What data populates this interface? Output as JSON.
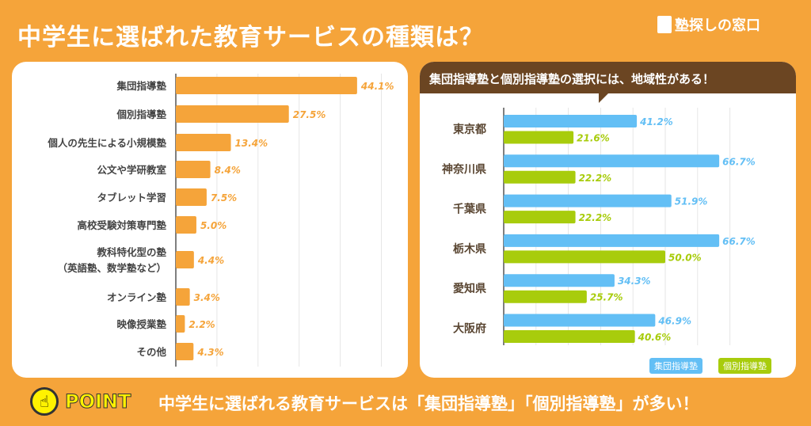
{
  "title": "中学生に選ばれた教育サービスの種類は？",
  "logo": "塾探しの窓口",
  "chart_data": [
    {
      "type": "bar",
      "orientation": "horizontal",
      "categories": [
        "集団指導塾",
        "個別指導塾",
        "個人の先生による小規模塾",
        "公文や学研教室",
        "タブレット学習",
        "高校受験対策専門塾",
        "教科特化型の塾\n（英語塾、数学塾など）",
        "オンライン塾",
        "映像授業塾",
        "その他"
      ],
      "values": [
        44.1,
        27.5,
        13.4,
        8.4,
        7.5,
        5.0,
        4.4,
        3.4,
        2.2,
        4.3
      ],
      "labels": [
        "44.1%",
        "27.5%",
        "13.4%",
        "8.4%",
        "7.5%",
        "5.0%",
        "4.4%",
        "3.4%",
        "2.2%",
        "4.3%"
      ],
      "xlim": [
        0,
        50
      ],
      "grid": true,
      "color": "#f5a43a"
    },
    {
      "type": "bar",
      "orientation": "horizontal",
      "title": "集団指導塾と個別指導塾の選択には、地域性がある！",
      "categories": [
        "東京都",
        "神奈川県",
        "千葉県",
        "栃木県",
        "愛知県",
        "大阪府"
      ],
      "series": [
        {
          "name": "集団指導塾",
          "color": "#63bff5",
          "values": [
            41.2,
            66.7,
            51.9,
            66.7,
            34.3,
            46.9
          ],
          "labels": [
            "41.2%",
            "66.7%",
            "51.9%",
            "66.7%",
            "34.3%",
            "46.9%"
          ]
        },
        {
          "name": "個別指導塾",
          "color": "#a8cc0c",
          "values": [
            21.6,
            22.2,
            22.2,
            50.0,
            25.7,
            40.6
          ],
          "labels": [
            "21.6%",
            "22.2%",
            "22.2%",
            "50.0%",
            "25.7%",
            "40.6%"
          ]
        }
      ],
      "xlim": [
        0,
        70
      ],
      "grid": true,
      "legend": "bottom-right"
    }
  ],
  "point": {
    "label": "POINT",
    "text": "中学生に選ばれる教育サービスは「集団指導塾」「個別指導塾」が多い！"
  }
}
